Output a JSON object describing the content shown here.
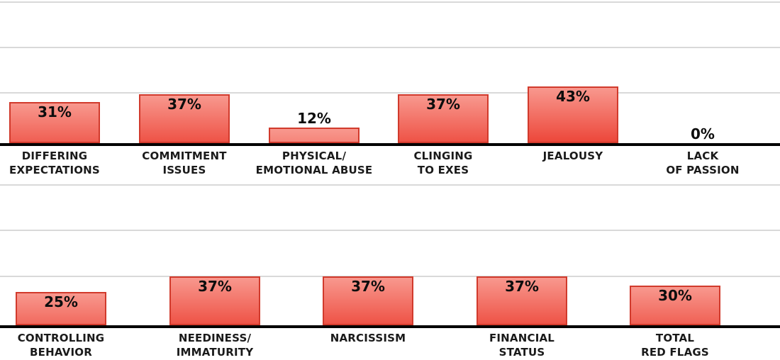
{
  "chart_data": [
    {
      "type": "bar",
      "row": "top",
      "categories": [
        "DIFFERING\nEXPECTATIONS",
        "COMMITMENT\nISSUES",
        "PHYSICAL/\nEMOTIONAL ABUSE",
        "CLINGING\nTO EXES",
        "JEALOUSY",
        "LACK\nOF PASSION"
      ],
      "values": [
        31,
        37,
        12,
        37,
        43,
        0
      ],
      "value_labels": [
        "31%",
        "37%",
        "12%",
        "37%",
        "43%",
        "0%"
      ],
      "value_suffix": "%",
      "ylim": [
        0,
        108
      ],
      "grid": true,
      "legend": "none",
      "xlabel": "",
      "ylabel": ""
    },
    {
      "type": "bar",
      "row": "bottom",
      "categories": [
        "CONTROLLING\nBEHAVIOR",
        "NEEDINESS/\nIMMATURITY",
        "NARCISSISM",
        "FINANCIAL\nSTATUS",
        "TOTAL\nRED FLAGS"
      ],
      "values": [
        25,
        37,
        37,
        37,
        30
      ],
      "value_labels": [
        "25%",
        "37%",
        "37%",
        "37%",
        "30%"
      ],
      "value_suffix": "%",
      "ylim": [
        0,
        108
      ],
      "grid": true,
      "legend": "none",
      "xlabel": "",
      "ylabel": ""
    }
  ],
  "styles": {
    "background_color": "#ffffff",
    "bar_gradient_top": "#f8988e",
    "bar_gradient_bottom": "#ec4336",
    "bar_border_color": "#d13a2c",
    "gridline_color": "#d9d9d9",
    "baseline_color": "#000000",
    "value_label_color": "#0d0d0d",
    "category_label_color": "#1a1a1a"
  }
}
